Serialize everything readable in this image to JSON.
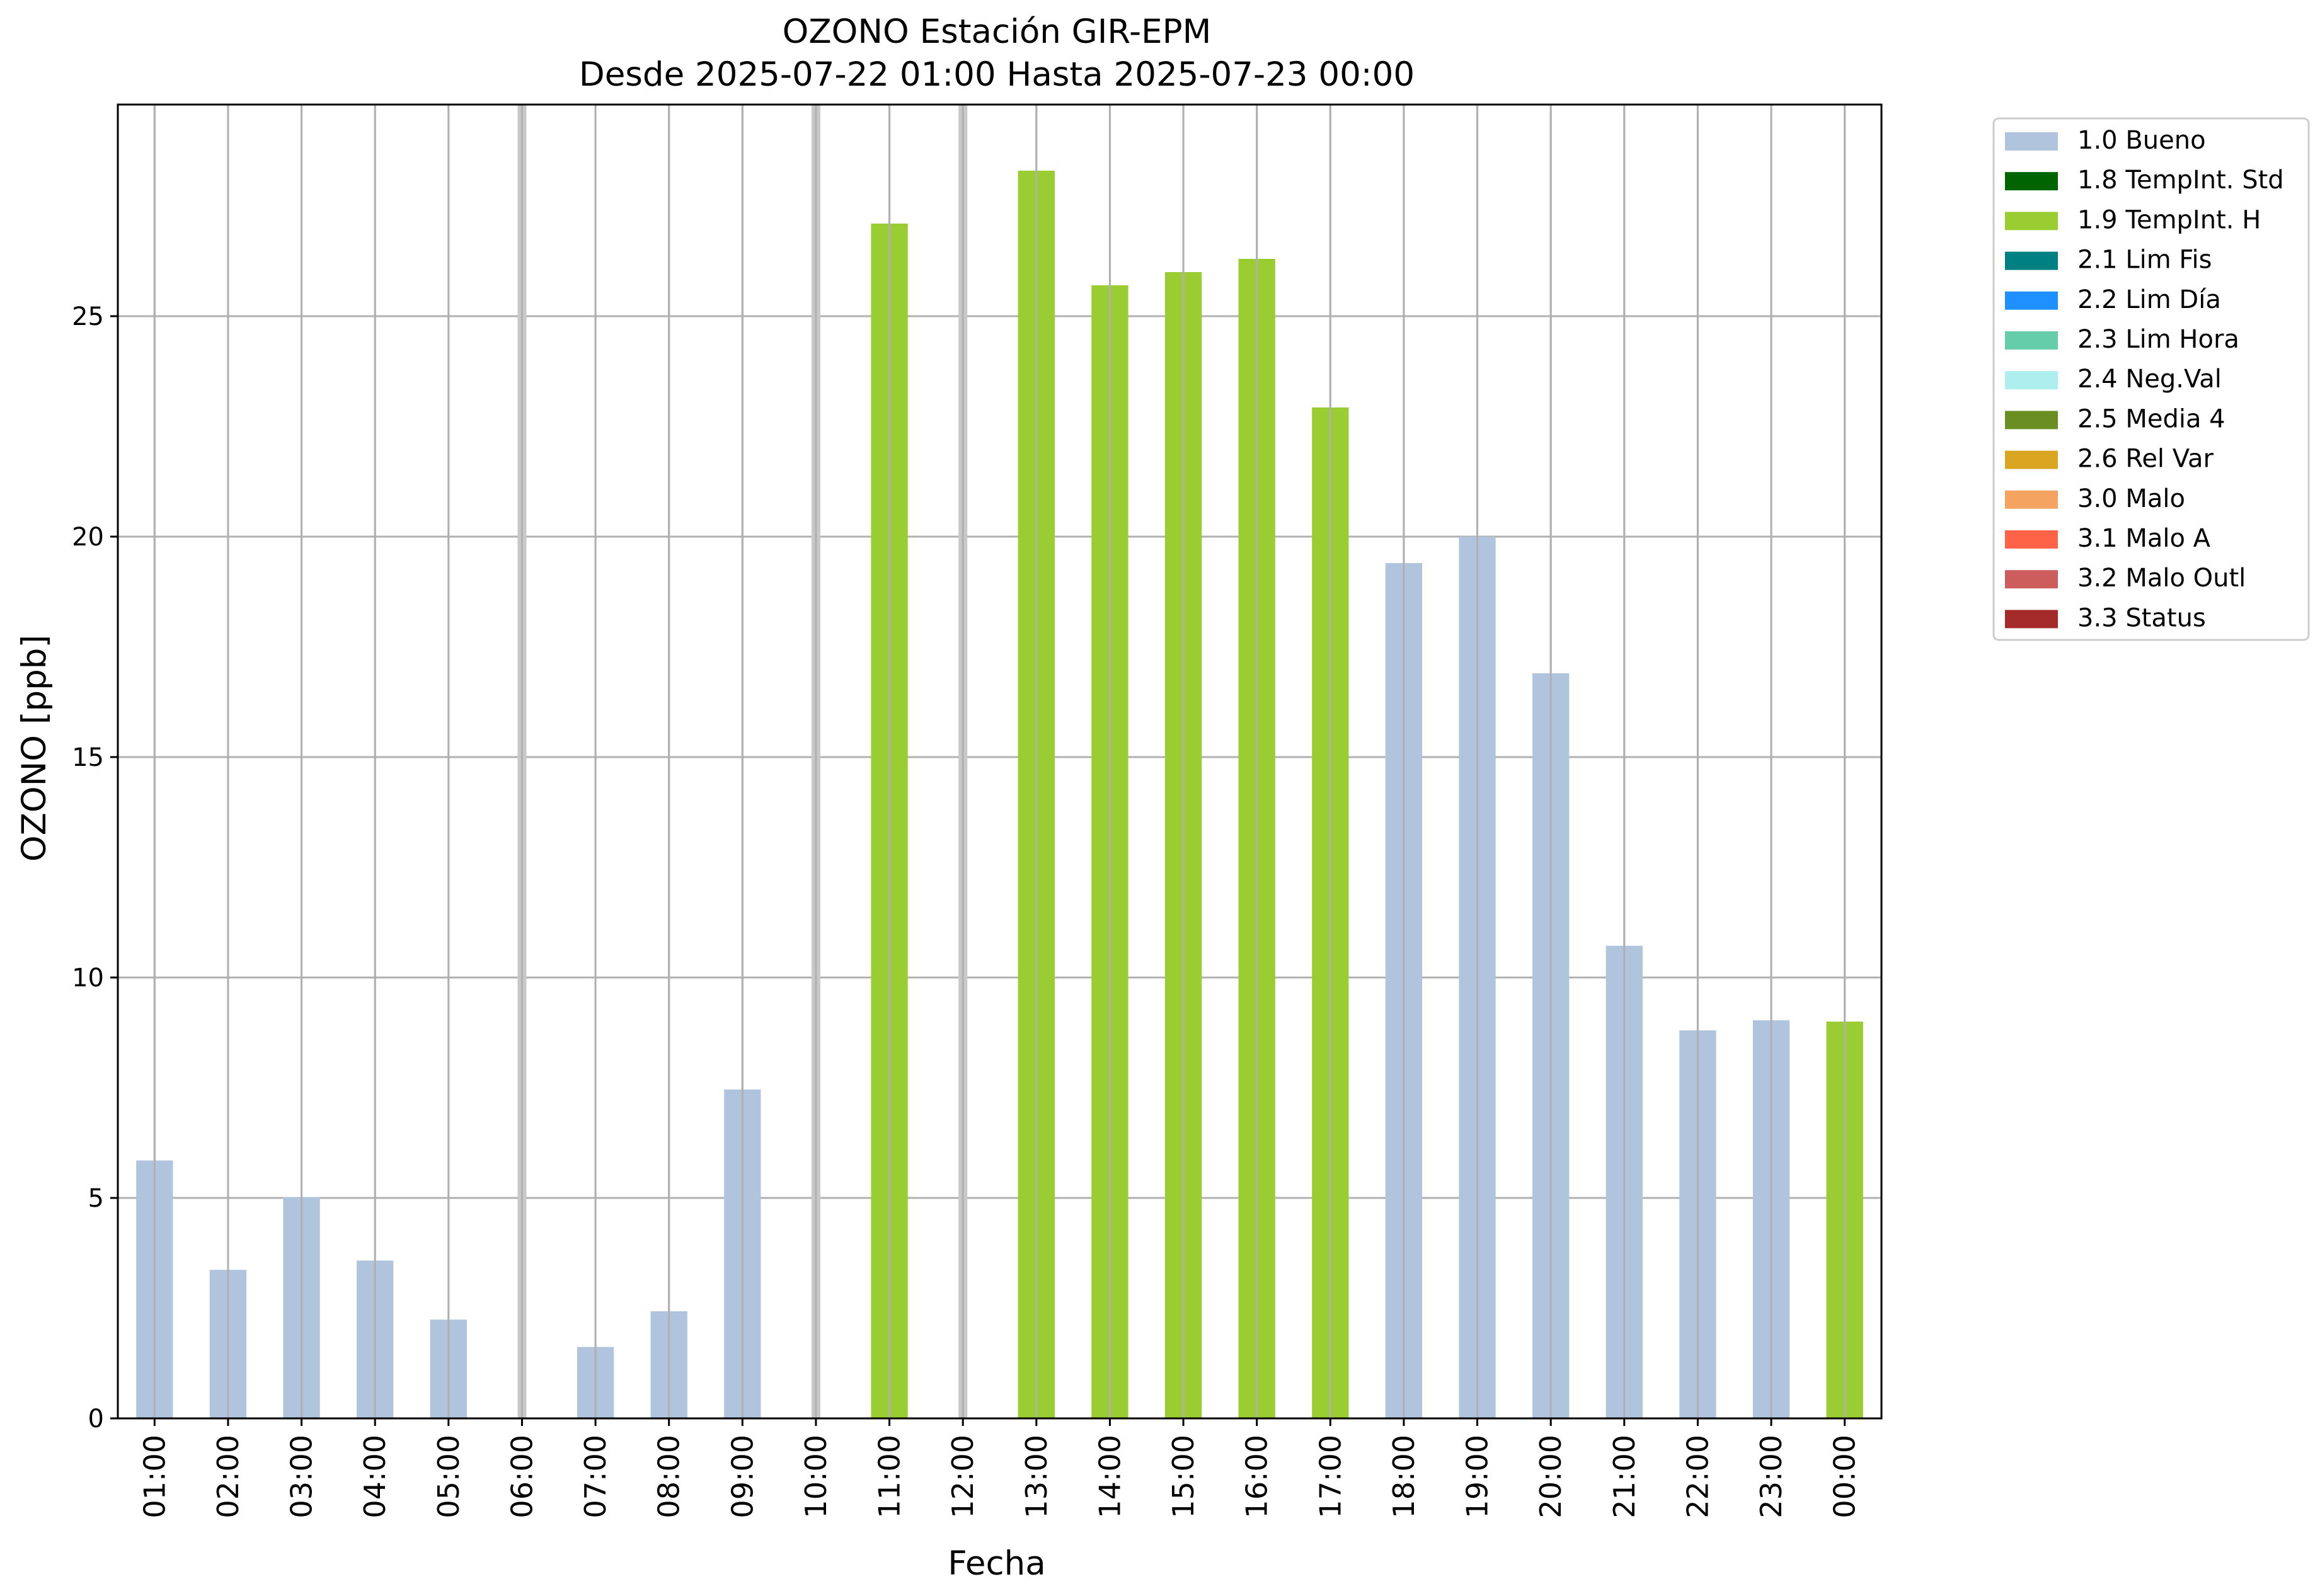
{
  "chart_data": {
    "type": "bar",
    "title": "OZONO Estación GIR-EPM",
    "subtitle": "Desde 2025-07-22 01:00 Hasta 2025-07-23 00:00",
    "xlabel": "Fecha",
    "ylabel": "OZONO [ppb]",
    "ylim": [
      0,
      29.8
    ],
    "yticks": [
      0,
      5,
      10,
      15,
      20,
      25
    ],
    "grid": true,
    "legend_position": "outside-top-right",
    "categories": [
      "01:00",
      "02:00",
      "03:00",
      "04:00",
      "05:00",
      "06:00",
      "07:00",
      "08:00",
      "09:00",
      "10:00",
      "11:00",
      "12:00",
      "13:00",
      "14:00",
      "15:00",
      "16:00",
      "17:00",
      "18:00",
      "19:00",
      "20:00",
      "21:00",
      "22:00",
      "23:00",
      "00:00"
    ],
    "values": [
      5.85,
      3.37,
      5.02,
      3.58,
      2.24,
      null,
      1.62,
      2.43,
      7.46,
      null,
      27.1,
      null,
      28.3,
      25.7,
      26.0,
      26.3,
      22.93,
      19.4,
      20.0,
      16.9,
      10.72,
      8.8,
      9.03,
      9.0
    ],
    "flags": [
      "1.0 Bueno",
      "1.0 Bueno",
      "1.0 Bueno",
      "1.0 Bueno",
      "1.0 Bueno",
      null,
      "1.0 Bueno",
      "1.0 Bueno",
      "1.0 Bueno",
      null,
      "1.9 TempInt. H",
      null,
      "1.9 TempInt. H",
      "1.9 TempInt. H",
      "1.9 TempInt. H",
      "1.9 TempInt. H",
      "1.9 TempInt. H",
      "1.0 Bueno",
      "1.0 Bueno",
      "1.0 Bueno",
      "1.0 Bueno",
      "1.0 Bueno",
      "1.0 Bueno",
      "1.9 TempInt. H"
    ],
    "missing_marker_color": "#c8c8c8",
    "legend": [
      {
        "label": "1.0 Bueno",
        "color": "#b0c4de"
      },
      {
        "label": "1.8 TempInt. Std",
        "color": "#006400"
      },
      {
        "label": "1.9 TempInt. H",
        "color": "#9acd32"
      },
      {
        "label": "2.1 Lim Fis",
        "color": "#008080"
      },
      {
        "label": "2.2 Lim Día",
        "color": "#1e90ff"
      },
      {
        "label": "2.3 Lim Hora",
        "color": "#66cdaa"
      },
      {
        "label": "2.4 Neg.Val",
        "color": "#afeeee"
      },
      {
        "label": "2.5 Media 4",
        "color": "#6b8e23"
      },
      {
        "label": "2.6 Rel Var",
        "color": "#daa520"
      },
      {
        "label": "3.0 Malo",
        "color": "#f4a460"
      },
      {
        "label": "3.1 Malo A",
        "color": "#ff6347"
      },
      {
        "label": "3.2 Malo Outl",
        "color": "#cd5c5c"
      },
      {
        "label": "3.3 Status",
        "color": "#a52a2a"
      }
    ]
  }
}
